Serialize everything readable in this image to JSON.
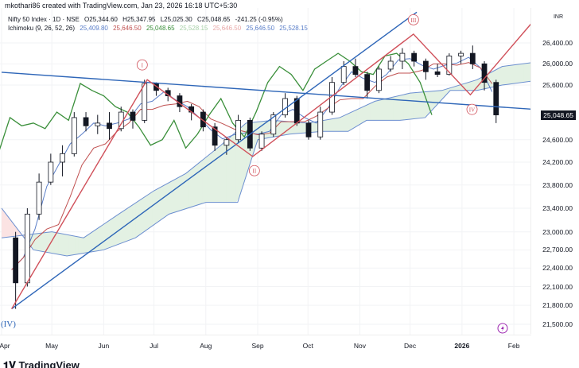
{
  "header": {
    "credit": "mkothari86 created with TradingView.com, Jan 23, 2026 16:18 UTC+5:30",
    "symbol": "Nifty 50 Index · 1D · NSE",
    "ohlc": [
      "O25,344.60",
      "H25,347.95",
      "L25,025.30",
      "C25,048.65"
    ],
    "change": "-241.25 (-0.95%)",
    "indicator": "Ichimoku (9, 26, 52, 26)",
    "indicator_values": [
      "25,409.80",
      "25,646.50",
      "25,048.65",
      "25,528.15",
      "25,646.50",
      "25,646.50",
      "25,528.15"
    ]
  },
  "colors": {
    "up": "#131722",
    "down": "#131722",
    "tenkan": "#5b7fc9",
    "kijun": "#c05050",
    "chikou": "#3a8f3a",
    "spanA": "#8fbf8f",
    "spanB": "#6c8fd0",
    "cloud_bull": "#e3f1e3",
    "cloud_bear": "#fbe3e3",
    "trend": "#2e66b8",
    "wave": "#d0505a",
    "positive_text": "#3a8f3a",
    "negative_text": "#d0505a"
  },
  "chart_data": {
    "type": "candlestick",
    "title": "Nifty 50 Index · 1D · NSE",
    "scale": "log",
    "ylim": [
      21350,
      26950
    ],
    "currency": "INR",
    "last_price": "25,048.65",
    "y_ticks": [
      "26,400.00",
      "26,000.00",
      "25,600.00",
      "24,600.00",
      "24,200.00",
      "23,800.00",
      "23,400.00",
      "23,000.00",
      "22,700.00",
      "22,400.00",
      "22,100.00",
      "21,800.00",
      "21,500.00"
    ],
    "x_ticks": [
      {
        "label": "Apr",
        "date": "2025-04-01"
      },
      {
        "label": "May",
        "date": "2025-05-01"
      },
      {
        "label": "Jun",
        "date": "2025-06-01"
      },
      {
        "label": "Jul",
        "date": "2025-07-01"
      },
      {
        "label": "Aug",
        "date": "2025-08-01"
      },
      {
        "label": "Sep",
        "date": "2025-09-01"
      },
      {
        "label": "Oct",
        "date": "2025-10-01"
      },
      {
        "label": "Nov",
        "date": "2025-11-01"
      },
      {
        "label": "Dec",
        "date": "2025-12-01"
      },
      {
        "label": "2026",
        "date": "2026-01-01",
        "bold": true
      },
      {
        "label": "Feb",
        "date": "2026-02-01"
      }
    ],
    "xlim": [
      "2025-03-31",
      "2026-02-18"
    ],
    "candles": [
      [
        "2025-04-07",
        22900,
        23000,
        21743,
        22160
      ],
      [
        "2025-04-14",
        22160,
        23400,
        22100,
        23300
      ],
      [
        "2025-04-21",
        23300,
        24000,
        23200,
        23850
      ],
      [
        "2025-04-28",
        23850,
        24350,
        23800,
        24200
      ],
      [
        "2025-05-05",
        24200,
        24500,
        23950,
        24350
      ],
      [
        "2025-05-12",
        24350,
        25100,
        24300,
        25000
      ],
      [
        "2025-05-19",
        25000,
        25100,
        24750,
        24850
      ],
      [
        "2025-05-26",
        24850,
        25050,
        24700,
        24900
      ],
      [
        "2025-06-02",
        24900,
        25100,
        24600,
        24800
      ],
      [
        "2025-06-09",
        24800,
        25200,
        24750,
        25100
      ],
      [
        "2025-06-16",
        25100,
        25150,
        24800,
        24950
      ],
      [
        "2025-06-23",
        24950,
        25700,
        24900,
        25630
      ],
      [
        "2025-06-30",
        25630,
        25650,
        25400,
        25500
      ],
      [
        "2025-07-07",
        25500,
        25550,
        25300,
        25400
      ],
      [
        "2025-07-14",
        25400,
        25450,
        25100,
        25200
      ],
      [
        "2025-07-21",
        25200,
        25250,
        24950,
        25100
      ],
      [
        "2025-07-28",
        25100,
        25150,
        24750,
        24830
      ],
      [
        "2025-08-04",
        24830,
        24900,
        24400,
        24500
      ],
      [
        "2025-08-11",
        24500,
        24650,
        24330,
        24600
      ],
      [
        "2025-08-18",
        24600,
        25050,
        24550,
        24950
      ],
      [
        "2025-08-25",
        24950,
        25000,
        24400,
        24450
      ],
      [
        "2025-09-01",
        24450,
        24750,
        24400,
        24700
      ],
      [
        "2025-09-08",
        24700,
        25100,
        24650,
        25050
      ],
      [
        "2025-09-15",
        25050,
        25450,
        25000,
        25350
      ],
      [
        "2025-09-22",
        25350,
        25400,
        24850,
        24900
      ],
      [
        "2025-09-29",
        24900,
        24950,
        24600,
        24650
      ],
      [
        "2025-10-06",
        24650,
        25200,
        24600,
        25100
      ],
      [
        "2025-10-13",
        25100,
        25750,
        25050,
        25650
      ],
      [
        "2025-10-20",
        25650,
        26050,
        25600,
        25950
      ],
      [
        "2025-10-27",
        25950,
        26100,
        25750,
        25800
      ],
      [
        "2025-11-03",
        25800,
        25850,
        25350,
        25500
      ],
      [
        "2025-11-10",
        25500,
        25950,
        25450,
        25900
      ],
      [
        "2025-11-17",
        25900,
        26150,
        25850,
        26050
      ],
      [
        "2025-11-24",
        26050,
        26300,
        25900,
        26200
      ],
      [
        "2025-12-01",
        26200,
        26250,
        25950,
        26050
      ],
      [
        "2025-12-08",
        26050,
        26100,
        25700,
        25850
      ],
      [
        "2025-12-15",
        25850,
        26000,
        25750,
        25800
      ],
      [
        "2025-12-22",
        25800,
        26200,
        25780,
        26150
      ],
      [
        "2025-12-29",
        26150,
        26250,
        26000,
        26200
      ],
      [
        "2026-01-05",
        26200,
        26350,
        25900,
        26000
      ],
      [
        "2026-01-12",
        26000,
        26050,
        25500,
        25650
      ],
      [
        "2026-01-19",
        25650,
        25700,
        24900,
        25048.65
      ]
    ],
    "ichimoku": {
      "spanA": [
        [
          "2025-04-01",
          22900
        ],
        [
          "2025-05-01",
          23000
        ],
        [
          "2025-05-20",
          22900
        ],
        [
          "2025-06-10",
          23300
        ],
        [
          "2025-07-01",
          23700
        ],
        [
          "2025-07-20",
          24000
        ],
        [
          "2025-08-10",
          24500
        ],
        [
          "2025-08-25",
          24900
        ],
        [
          "2025-09-10",
          24950
        ],
        [
          "2025-10-01",
          24900
        ],
        [
          "2025-10-20",
          25000
        ],
        [
          "2025-11-10",
          25300
        ],
        [
          "2025-12-01",
          25450
        ],
        [
          "2025-12-20",
          25500
        ],
        [
          "2026-01-10",
          25700
        ],
        [
          "2026-01-25",
          25950
        ],
        [
          "2026-02-18",
          26050
        ]
      ],
      "spanB": [
        [
          "2025-04-01",
          23400
        ],
        [
          "2025-04-20",
          22700
        ],
        [
          "2025-05-10",
          22600
        ],
        [
          "2025-06-01",
          22700
        ],
        [
          "2025-06-20",
          22900
        ],
        [
          "2025-07-10",
          23300
        ],
        [
          "2025-08-01",
          23500
        ],
        [
          "2025-08-20",
          23500
        ],
        [
          "2025-09-01",
          24600
        ],
        [
          "2025-09-20",
          24700
        ],
        [
          "2025-10-10",
          24750
        ],
        [
          "2025-10-25",
          24750
        ],
        [
          "2025-11-05",
          24950
        ],
        [
          "2025-11-25",
          24950
        ],
        [
          "2025-12-10",
          25000
        ],
        [
          "2025-12-25",
          25500
        ],
        [
          "2026-01-10",
          25500
        ],
        [
          "2026-01-25",
          25600
        ],
        [
          "2026-02-18",
          25700
        ]
      ]
    },
    "drawings": {
      "trendlines": [
        [
          [
            "2025-04-01",
            25840
          ],
          [
            "2026-02-18",
            25140
          ]
        ],
        [
          [
            "2025-04-07",
            21743
          ],
          [
            "2025-12-05",
            27000
          ]
        ]
      ],
      "wave": [
        [
          "2025-04-07",
          21743
        ],
        [
          "2025-06-27",
          25700
        ],
        [
          "2025-08-29",
          24300
        ],
        [
          "2025-12-03",
          26570
        ],
        [
          "2026-01-06",
          25420
        ],
        [
          "2026-02-18",
          27030
        ]
      ],
      "labels": [
        {
          "text": "I",
          "date": "2025-06-24",
          "price": 25980,
          "style": "circle"
        },
        {
          "text": "II",
          "date": "2025-08-30",
          "price": 24050,
          "style": "circle"
        },
        {
          "text": "III",
          "date": "2025-12-03",
          "price": 26850,
          "style": "circle"
        },
        {
          "text": "IV",
          "date": "2026-01-07",
          "price": 25150,
          "style": "circle"
        },
        {
          "text": "(IV)",
          "date": "2025-04-05",
          "price": 21500,
          "style": "plain"
        }
      ]
    }
  },
  "footer": {
    "brand": "TradingView"
  }
}
